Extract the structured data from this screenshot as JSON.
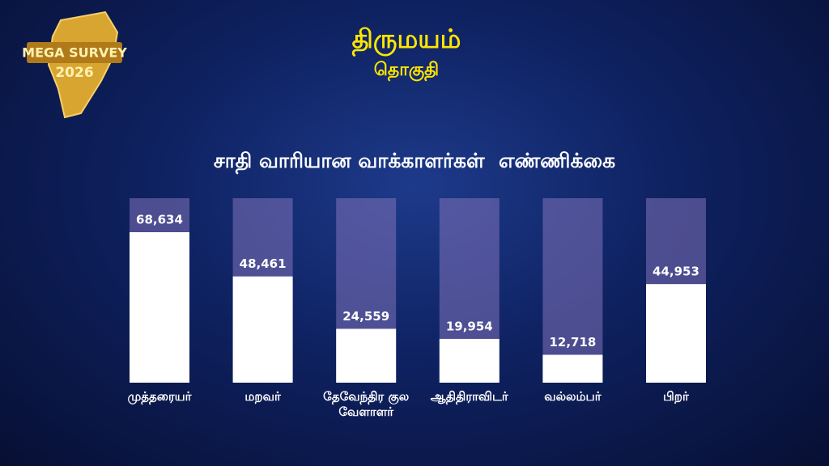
{
  "logo": {
    "text": "MEGA SURVEY",
    "year": "2026"
  },
  "chart_data": {
    "type": "bar",
    "title": "திருமயம்",
    "subtitle": "தொகுதி",
    "chart_title": "சாதி வாரியான வாக்காளர்கள்  எண்ணிக்கை",
    "categories": [
      "முத்தரையர்",
      "மறவர்",
      "தேவேந்திர குல வேளாளர்",
      "ஆதிதிராவிடர்",
      "வல்லம்பர்",
      "பிறர்"
    ],
    "values": [
      68634,
      48461,
      24559,
      19954,
      12718,
      44953
    ],
    "value_labels": [
      "68,634",
      "48,461",
      "24,559",
      "19,954",
      "12,718",
      "44,953"
    ],
    "color": "#ffffff"
  }
}
